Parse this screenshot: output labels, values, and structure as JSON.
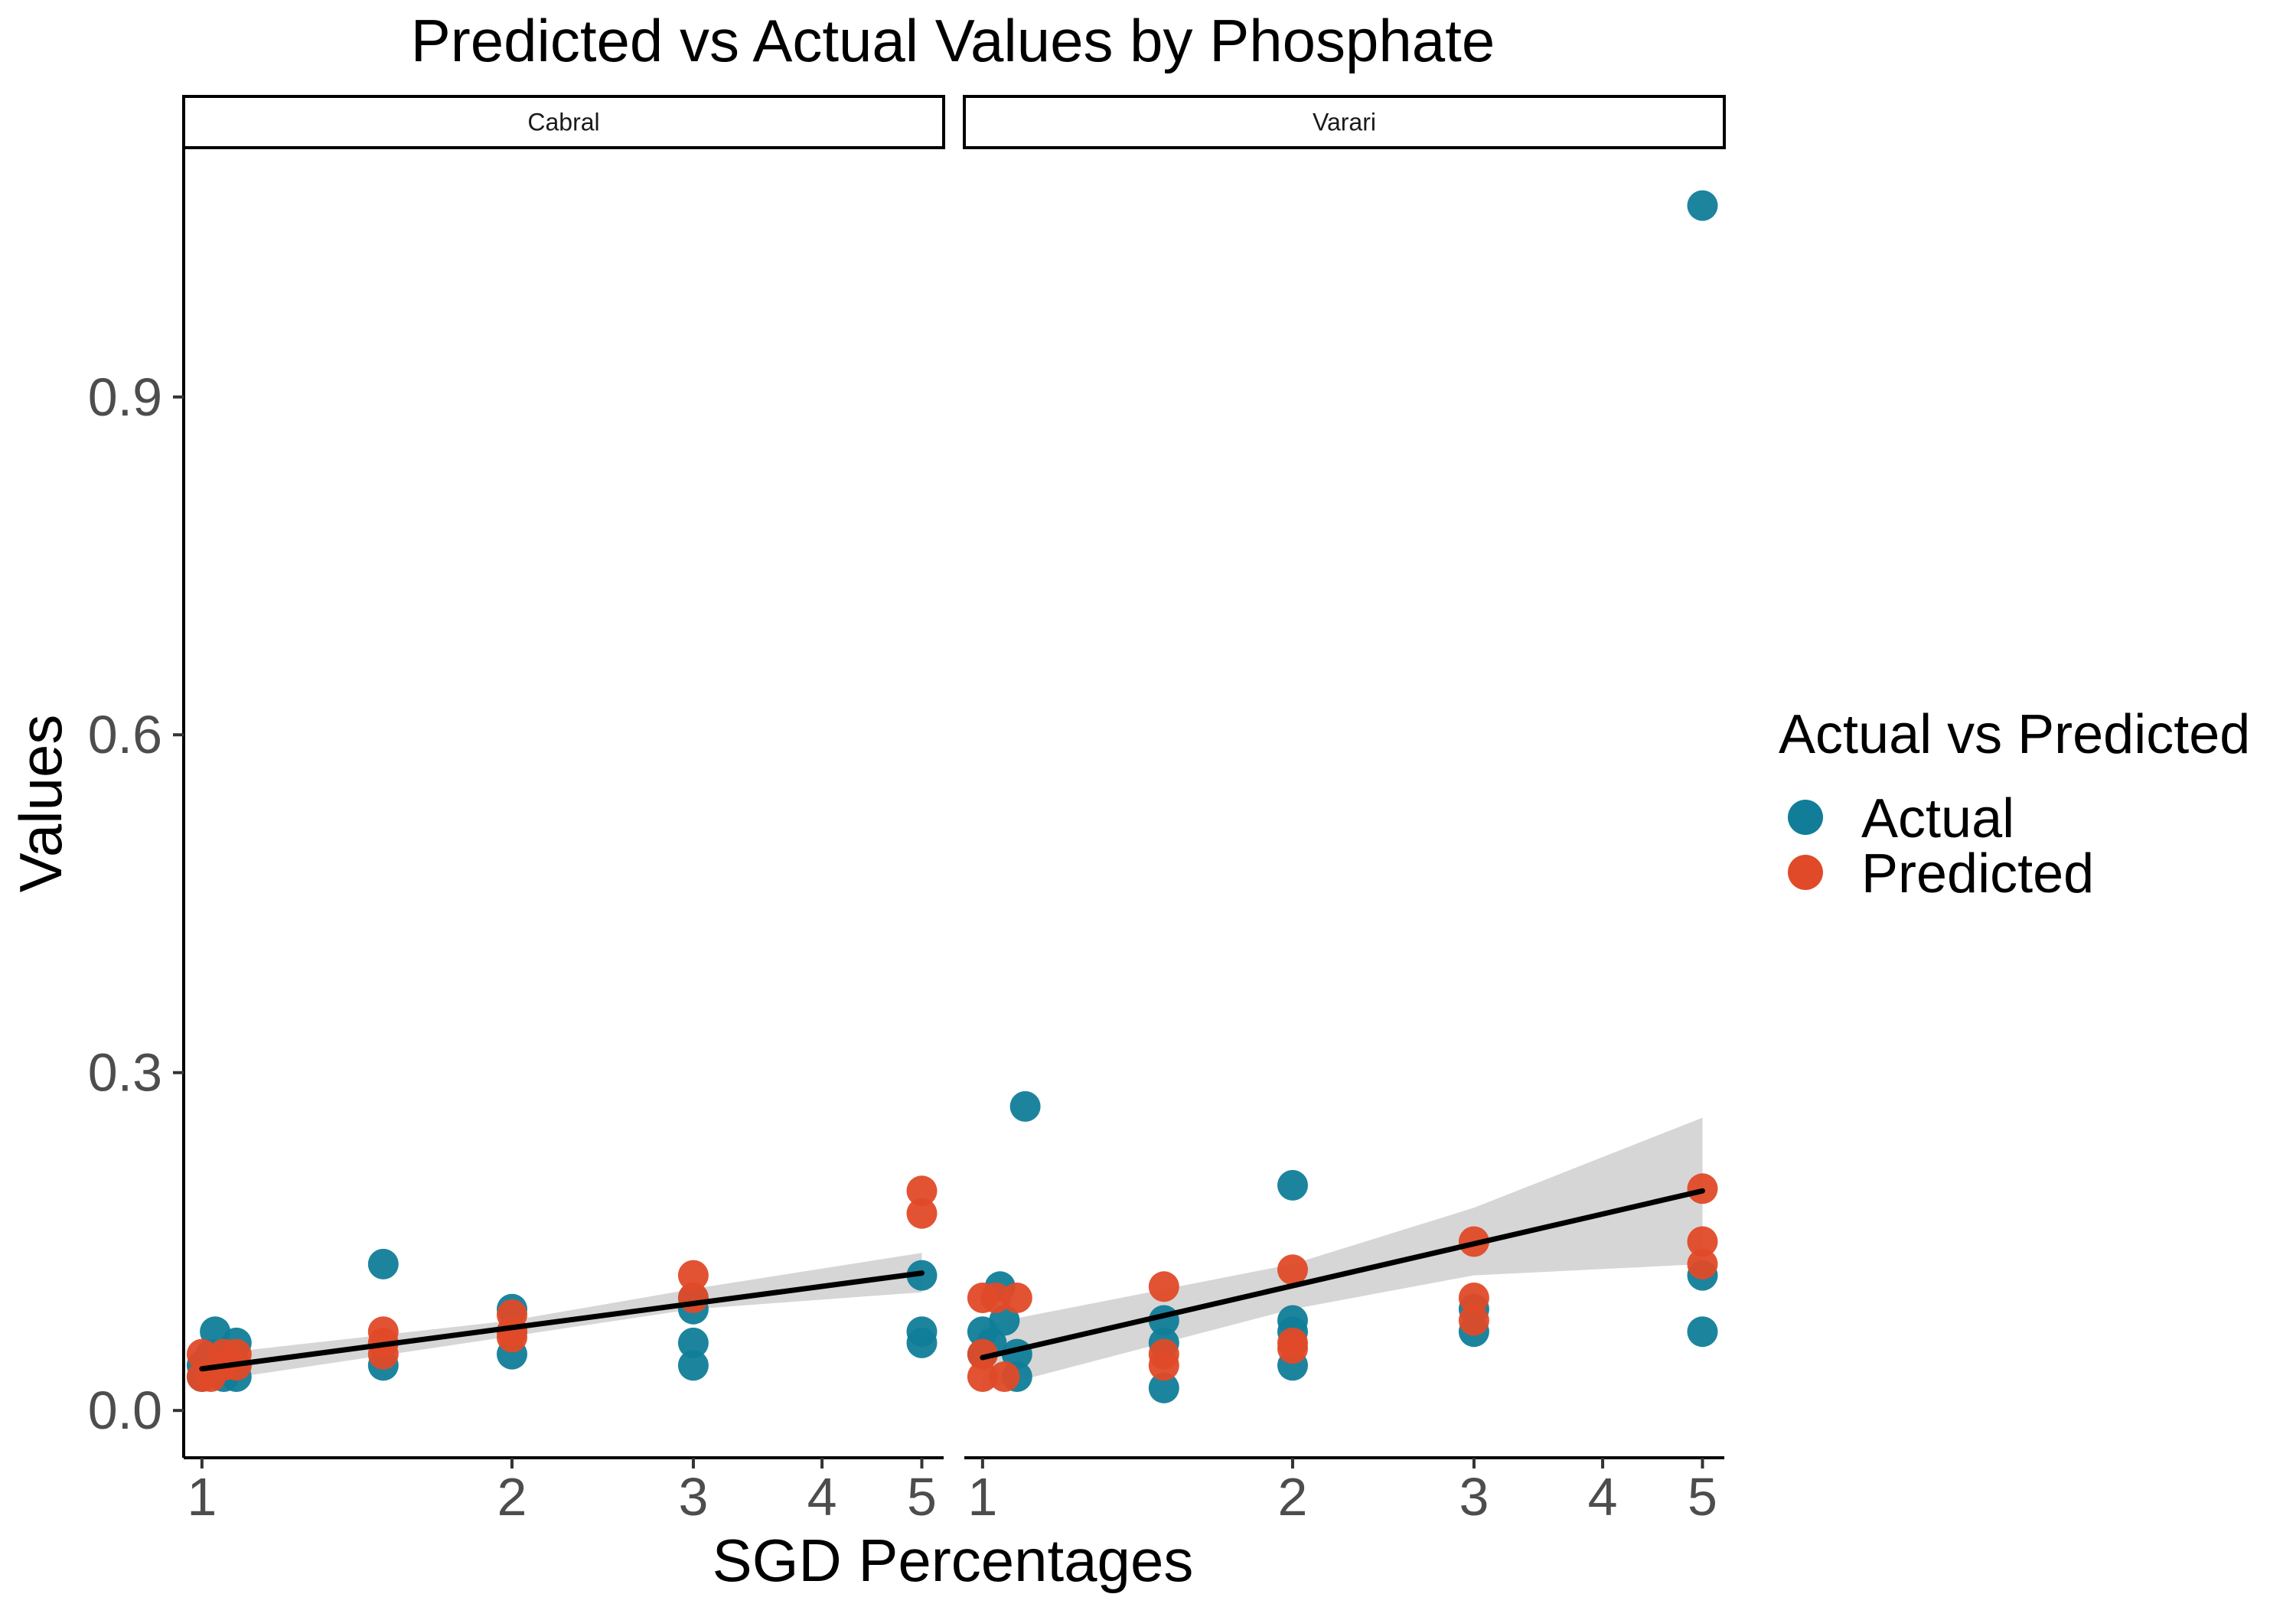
{
  "chart_data": {
    "type": "scatter",
    "title": "Predicted vs Actual Values by Phosphate",
    "xlabel": "SGD Percentages",
    "ylabel": "Values",
    "x_scale": "log10",
    "xlim": [
      0.96,
      5.25
    ],
    "ylim": [
      -0.042,
      1.12
    ],
    "x_ticks": [
      1,
      2,
      3,
      4,
      5
    ],
    "y_ticks": [
      0.0,
      0.3,
      0.6,
      0.9
    ],
    "y_tick_labels": [
      "0.0",
      "0.3",
      "0.6",
      "0.9"
    ],
    "grid": false,
    "legend": {
      "title": "Actual vs Predicted",
      "position": "right",
      "entries": [
        {
          "name": "Actual",
          "color": "#117d99"
        },
        {
          "name": "Predicted",
          "color": "#e04a28"
        }
      ]
    },
    "colors": {
      "actual": "#117d99",
      "predicted": "#e04a28",
      "fit_line": "#000000",
      "ci_band": "#cccccc"
    },
    "panels": [
      {
        "name": "Cabral",
        "series": [
          {
            "name": "Actual",
            "points": [
              [
                1.0,
                0.04
              ],
              [
                1.0,
                0.03
              ],
              [
                1.02,
                0.05
              ],
              [
                1.03,
                0.07
              ],
              [
                1.05,
                0.03
              ],
              [
                1.05,
                0.04
              ],
              [
                1.08,
                0.06
              ],
              [
                1.08,
                0.03
              ],
              [
                1.08,
                0.04
              ],
              [
                1.5,
                0.13
              ],
              [
                1.5,
                0.04
              ],
              [
                2.0,
                0.09
              ],
              [
                2.0,
                0.05
              ],
              [
                2.0,
                0.07
              ],
              [
                3.0,
                0.09
              ],
              [
                3.0,
                0.06
              ],
              [
                3.0,
                0.04
              ],
              [
                3.0,
                0.1
              ],
              [
                5.0,
                0.12
              ],
              [
                5.0,
                0.07
              ],
              [
                5.0,
                0.06
              ]
            ]
          },
          {
            "name": "Predicted",
            "points": [
              [
                1.0,
                0.05
              ],
              [
                1.0,
                0.03
              ],
              [
                1.02,
                0.03
              ],
              [
                1.05,
                0.04
              ],
              [
                1.05,
                0.05
              ],
              [
                1.08,
                0.05
              ],
              [
                1.08,
                0.04
              ],
              [
                1.5,
                0.07
              ],
              [
                1.5,
                0.06
              ],
              [
                1.5,
                0.05
              ],
              [
                2.0,
                0.085
              ],
              [
                2.0,
                0.065
              ],
              [
                2.0,
                0.07
              ],
              [
                3.0,
                0.12
              ],
              [
                3.0,
                0.1
              ],
              [
                5.0,
                0.195
              ],
              [
                5.0,
                0.175
              ]
            ]
          }
        ],
        "fit": {
          "x": [
            1.0,
            5.0
          ],
          "y": [
            0.037,
            0.122
          ],
          "ci_x": [
            1.0,
            2.0,
            3.0,
            5.0
          ],
          "ci_lower": [
            0.025,
            0.066,
            0.09,
            0.105
          ],
          "ci_upper": [
            0.049,
            0.08,
            0.108,
            0.14
          ]
        }
      },
      {
        "name": "Varari",
        "series": [
          {
            "name": "Actual",
            "points": [
              [
                1.0,
                0.07
              ],
              [
                1.0,
                0.05
              ],
              [
                1.02,
                0.06
              ],
              [
                1.04,
                0.11
              ],
              [
                1.05,
                0.08
              ],
              [
                1.08,
                0.03
              ],
              [
                1.08,
                0.05
              ],
              [
                1.1,
                0.27
              ],
              [
                1.5,
                0.08
              ],
              [
                1.5,
                0.06
              ],
              [
                1.5,
                0.02
              ],
              [
                2.0,
                0.2
              ],
              [
                2.0,
                0.08
              ],
              [
                2.0,
                0.07
              ],
              [
                2.0,
                0.04
              ],
              [
                3.0,
                0.09
              ],
              [
                3.0,
                0.07
              ],
              [
                5.0,
                1.07
              ],
              [
                5.0,
                0.12
              ],
              [
                5.0,
                0.07
              ]
            ]
          },
          {
            "name": "Predicted",
            "points": [
              [
                1.0,
                0.1
              ],
              [
                1.0,
                0.05
              ],
              [
                1.0,
                0.03
              ],
              [
                1.03,
                0.1
              ],
              [
                1.05,
                0.03
              ],
              [
                1.08,
                0.1
              ],
              [
                1.5,
                0.11
              ],
              [
                1.5,
                0.05
              ],
              [
                1.5,
                0.04
              ],
              [
                2.0,
                0.125
              ],
              [
                2.0,
                0.06
              ],
              [
                2.0,
                0.055
              ],
              [
                3.0,
                0.15
              ],
              [
                3.0,
                0.1
              ],
              [
                3.0,
                0.08
              ],
              [
                5.0,
                0.197
              ],
              [
                5.0,
                0.15
              ],
              [
                5.0,
                0.13
              ]
            ]
          }
        ],
        "fit": {
          "x": [
            1.0,
            5.0
          ],
          "y": [
            0.047,
            0.195
          ],
          "ci_x": [
            1.0,
            2.0,
            3.0,
            5.0
          ],
          "ci_lower": [
            0.018,
            0.09,
            0.12,
            0.13
          ],
          "ci_upper": [
            0.076,
            0.13,
            0.18,
            0.26
          ]
        }
      }
    ]
  }
}
